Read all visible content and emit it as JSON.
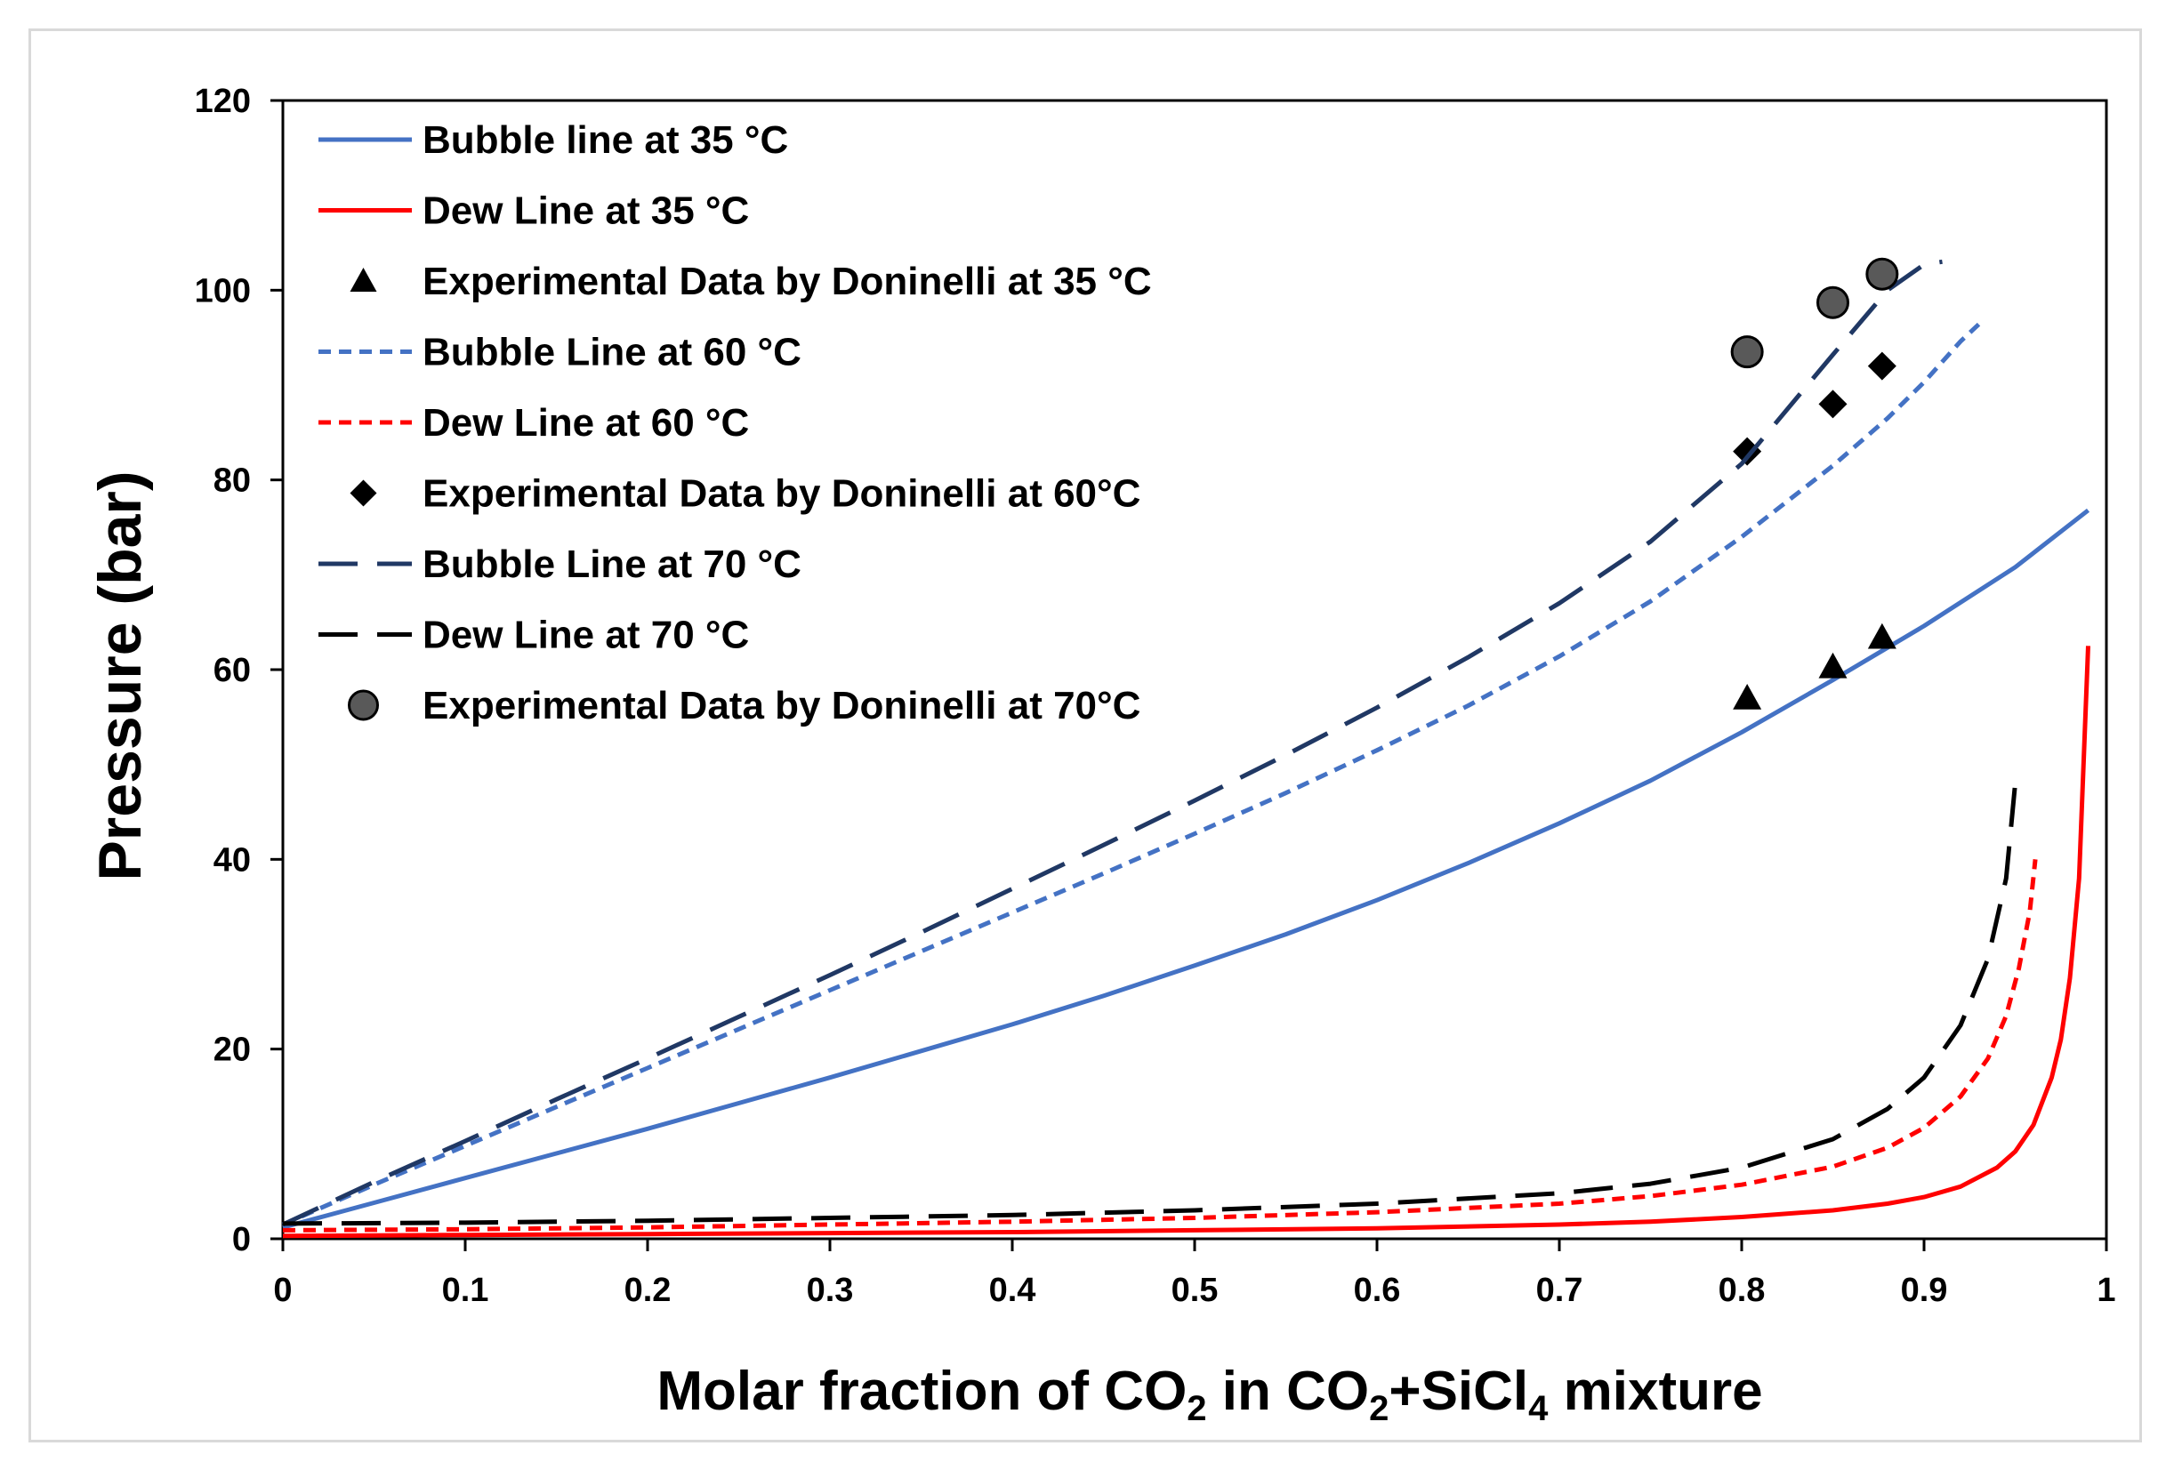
{
  "chart_data": {
    "type": "line",
    "title": "",
    "xlabel": {
      "parts": [
        {
          "text": "Molar fraction of CO"
        },
        {
          "text": "2",
          "sub": true
        },
        {
          "text": " in CO"
        },
        {
          "text": "2",
          "sub": true
        },
        {
          "text": "+SiCl"
        },
        {
          "text": "4",
          "sub": true
        },
        {
          "text": " mixture"
        }
      ]
    },
    "ylabel": "Pressure (bar)",
    "xlim": [
      0,
      1
    ],
    "ylim": [
      0,
      120
    ],
    "xticks": [
      0,
      0.1,
      0.2,
      0.3,
      0.4,
      0.5,
      0.6,
      0.7,
      0.8,
      0.9,
      1
    ],
    "xtick_labels": [
      "0",
      "0.1",
      "0.2",
      "0.3",
      "0.4",
      "0.5",
      "0.6",
      "0.7",
      "0.8",
      "0.9",
      "1"
    ],
    "yticks": [
      0,
      20,
      40,
      60,
      80,
      100,
      120
    ],
    "ytick_labels": [
      "0",
      "20",
      "40",
      "60",
      "80",
      "100",
      "120"
    ],
    "grid": false,
    "legend_position": "top-left",
    "series": [
      {
        "name": "Bubble line at 35 °C",
        "kind": "line",
        "color": "#4472c4",
        "dash": "solid",
        "x": [
          0,
          0.05,
          0.1,
          0.15,
          0.2,
          0.25,
          0.3,
          0.35,
          0.4,
          0.45,
          0.5,
          0.55,
          0.6,
          0.65,
          0.7,
          0.75,
          0.8,
          0.85,
          0.9,
          0.95,
          0.99
        ],
        "y": [
          1.2,
          3.8,
          6.4,
          9.0,
          11.6,
          14.3,
          17.0,
          19.8,
          22.6,
          25.6,
          28.8,
          32.1,
          35.7,
          39.6,
          43.8,
          48.3,
          53.4,
          58.9,
          64.6,
          70.8,
          76.8
        ]
      },
      {
        "name": "Dew Line at 35 °C",
        "kind": "line",
        "color": "#ff0000",
        "dash": "solid",
        "x": [
          0,
          0.1,
          0.2,
          0.3,
          0.4,
          0.5,
          0.6,
          0.7,
          0.75,
          0.8,
          0.85,
          0.88,
          0.9,
          0.92,
          0.94,
          0.95,
          0.96,
          0.97,
          0.975,
          0.98,
          0.985,
          0.99
        ],
        "y": [
          0.3,
          0.4,
          0.5,
          0.6,
          0.7,
          0.9,
          1.1,
          1.5,
          1.8,
          2.3,
          3.0,
          3.7,
          4.4,
          5.5,
          7.5,
          9.2,
          12.0,
          17.0,
          21.0,
          27.5,
          38.0,
          62.5
        ]
      },
      {
        "name": "Experimental Data by Doninelli at 35 °C",
        "kind": "scatter",
        "marker": "triangle",
        "color": "#000000",
        "x": [
          0.803,
          0.85,
          0.877
        ],
        "y": [
          57.0,
          60.3,
          63.4
        ]
      },
      {
        "name": "Bubble Line at 60 °C",
        "kind": "line",
        "color": "#4472c4",
        "dash": "short",
        "x": [
          0,
          0.05,
          0.1,
          0.15,
          0.2,
          0.25,
          0.3,
          0.35,
          0.4,
          0.45,
          0.5,
          0.55,
          0.6,
          0.65,
          0.7,
          0.75,
          0.8,
          0.85,
          0.88,
          0.9,
          0.92,
          0.93
        ],
        "y": [
          1.5,
          5.7,
          9.8,
          13.9,
          18.0,
          22.1,
          26.2,
          30.3,
          34.4,
          38.5,
          42.7,
          47.0,
          51.5,
          56.2,
          61.4,
          67.2,
          74.0,
          81.5,
          86.5,
          90.3,
          94.6,
          96.4
        ]
      },
      {
        "name": "Dew Line at 60 °C",
        "kind": "line",
        "color": "#ff0000",
        "dash": "short",
        "x": [
          0,
          0.1,
          0.2,
          0.3,
          0.4,
          0.5,
          0.6,
          0.7,
          0.75,
          0.8,
          0.85,
          0.88,
          0.9,
          0.92,
          0.935,
          0.945,
          0.952,
          0.958,
          0.961
        ],
        "y": [
          0.9,
          1.0,
          1.2,
          1.5,
          1.8,
          2.2,
          2.8,
          3.7,
          4.5,
          5.7,
          7.6,
          9.6,
          11.7,
          15.0,
          19.0,
          23.5,
          28.5,
          34.5,
          40.0
        ]
      },
      {
        "name": "Experimental Data by Doninelli at 60°C",
        "kind": "scatter",
        "marker": "diamond",
        "color": "#000000",
        "x": [
          0.803,
          0.85,
          0.877
        ],
        "y": [
          83.0,
          88.0,
          92.0
        ]
      },
      {
        "name": "Bubble Line at 70 °C",
        "kind": "line",
        "color": "#203864",
        "dash": "long",
        "x": [
          0,
          0.05,
          0.1,
          0.15,
          0.2,
          0.25,
          0.3,
          0.35,
          0.4,
          0.45,
          0.5,
          0.55,
          0.6,
          0.65,
          0.7,
          0.75,
          0.8,
          0.85,
          0.88,
          0.9,
          0.91
        ],
        "y": [
          1.5,
          6.0,
          10.3,
          14.7,
          19.0,
          23.4,
          27.8,
          32.3,
          36.9,
          41.5,
          46.2,
          51.0,
          56.0,
          61.3,
          67.0,
          73.5,
          81.7,
          93.2,
          100.0,
          102.7,
          103.0
        ]
      },
      {
        "name": "Dew Line at 70 °C",
        "kind": "line",
        "color": "#000000",
        "dash": "long",
        "x": [
          0,
          0.1,
          0.2,
          0.3,
          0.4,
          0.5,
          0.6,
          0.7,
          0.75,
          0.8,
          0.85,
          0.88,
          0.9,
          0.92,
          0.935,
          0.945,
          0.95
        ],
        "y": [
          1.6,
          1.7,
          1.9,
          2.2,
          2.5,
          3.0,
          3.7,
          4.8,
          5.8,
          7.5,
          10.5,
          13.7,
          17.0,
          22.5,
          29.5,
          38.0,
          48.0
        ]
      },
      {
        "name": "Experimental Data by Doninelli at 70°C",
        "kind": "scatter",
        "marker": "circle",
        "color": "#595959",
        "x": [
          0.803,
          0.85,
          0.877
        ],
        "y": [
          93.5,
          98.7,
          101.7
        ]
      }
    ]
  }
}
